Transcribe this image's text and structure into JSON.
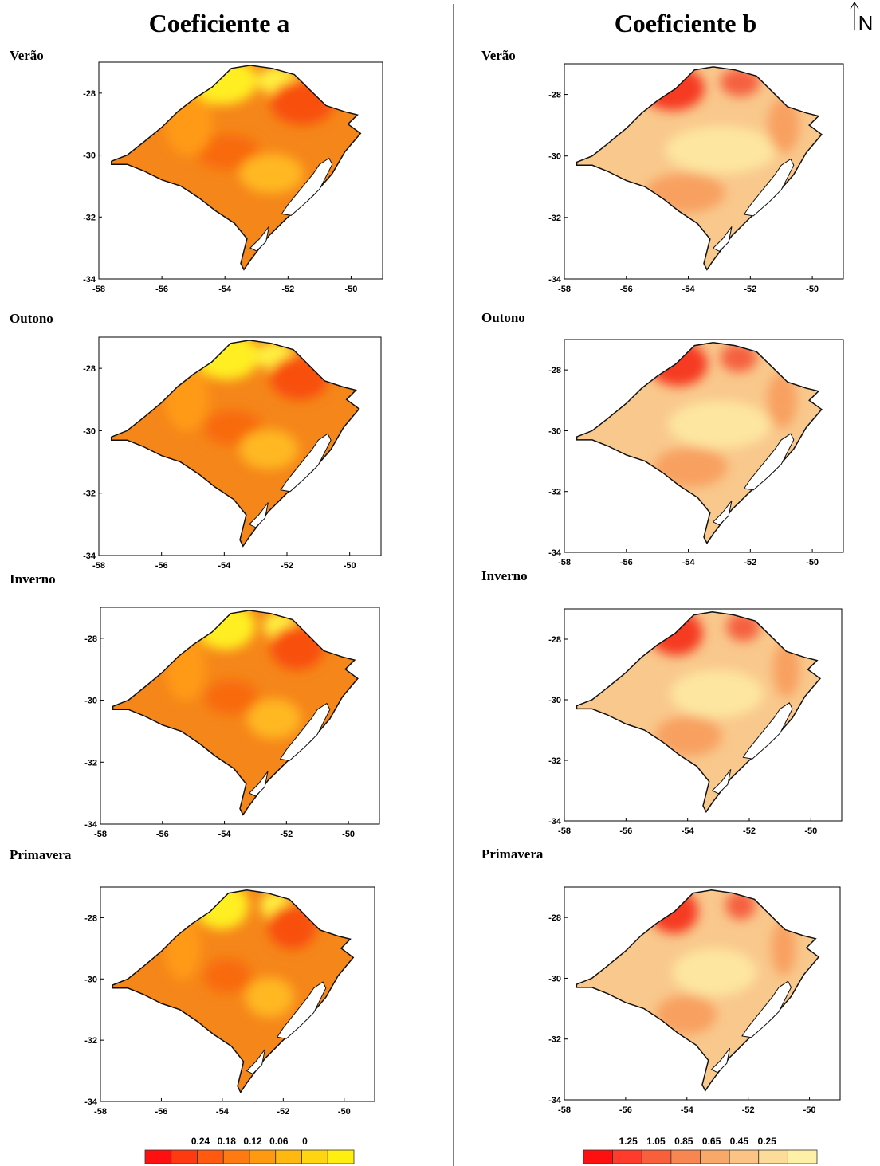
{
  "north": "N",
  "xlim": [
    -58,
    -49
  ],
  "ylim": [
    -34,
    -27
  ],
  "xticks": [
    -58,
    -56,
    -54,
    -52,
    -50
  ],
  "yticks": [
    -28,
    -30,
    -32,
    -34
  ],
  "columns": [
    {
      "title": "Coeficiente a",
      "panels": [
        {
          "label": "Verão"
        },
        {
          "label": "Outono"
        },
        {
          "label": "Inverno"
        },
        {
          "label": "Primavera"
        }
      ],
      "legend": {
        "labels": [
          "0.24",
          "0.18",
          "0.12",
          "0.06",
          "0"
        ],
        "colors": [
          "#ff1010",
          "#ff3a10",
          "#ff5a10",
          "#ff7a10",
          "#ff9a10",
          "#ffb810",
          "#ffd410",
          "#ffee10"
        ]
      }
    },
    {
      "title": "Coeficiente b",
      "panels": [
        {
          "label": "Verão"
        },
        {
          "label": "Outono"
        },
        {
          "label": "Inverno"
        },
        {
          "label": "Primavera"
        }
      ],
      "legend": {
        "labels": [
          "1.25",
          "1.05",
          "0.85",
          "0.65",
          "0.45",
          "0.25"
        ],
        "colors": [
          "#ff1010",
          "#ff3c2c",
          "#f8603c",
          "#f88650",
          "#f8a868",
          "#fbc484",
          "#fcdc98",
          "#fff0a8"
        ]
      }
    }
  ]
}
